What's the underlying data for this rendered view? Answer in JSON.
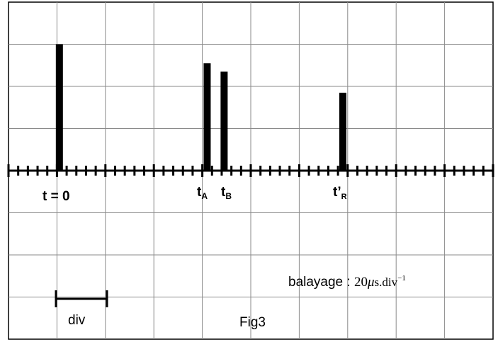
{
  "figure": {
    "caption": "Fig3",
    "grid": {
      "columns": 10,
      "rows": 8,
      "minor_ticks_per_division": 5
    },
    "colors": {
      "grid": "#8a8a8a",
      "trace": "#000000",
      "background": "#ffffff"
    }
  },
  "pulses": [
    {
      "name": "t0",
      "position_div": 1.05,
      "height_div": 3.0
    },
    {
      "name": "tA",
      "position_div": 4.1,
      "height_div": 2.55
    },
    {
      "name": "tB",
      "position_div": 4.45,
      "height_div": 2.35
    },
    {
      "name": "tR",
      "position_div": 6.9,
      "height_div": 1.85
    }
  ],
  "labels": {
    "t0": "t = 0",
    "tA_main": "t",
    "tA_sub": "A",
    "tB_main": "t",
    "tB_sub": "B",
    "tR_main": "t’",
    "tR_sub": "R"
  },
  "div_indicator": {
    "label": "div",
    "length_div": 1
  },
  "sweep": {
    "prefix": "balayage : ",
    "value": "20",
    "mu": "μ",
    "unit": "s.div",
    "exponent": "−1"
  }
}
